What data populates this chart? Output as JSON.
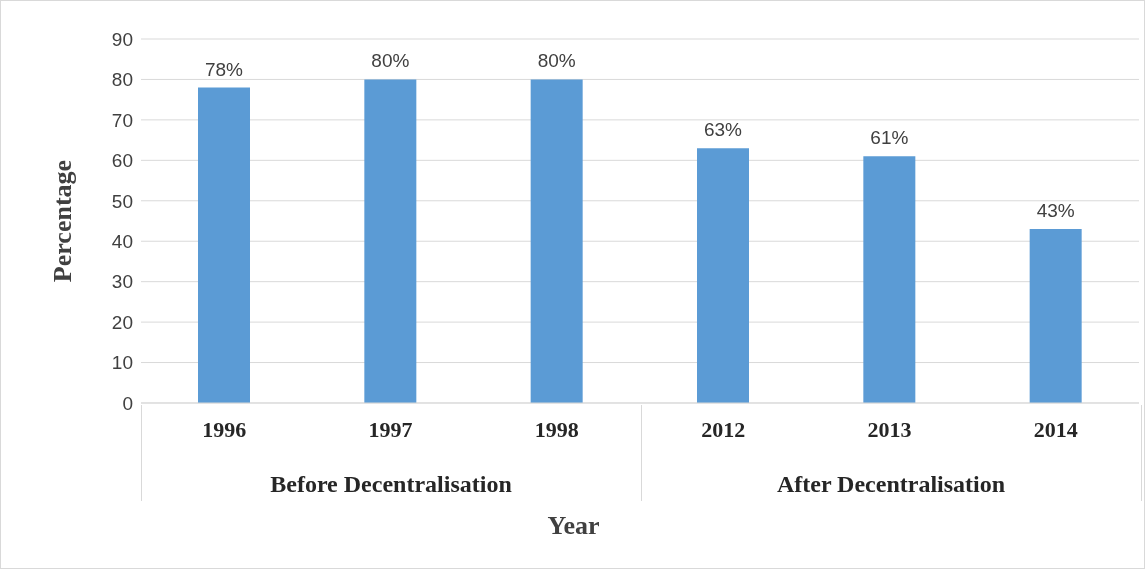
{
  "chart_data": {
    "type": "bar",
    "xlabel": "Year",
    "ylabel": "Percentage",
    "categories": [
      "1996",
      "1997",
      "1998",
      "2012",
      "2013",
      "2014"
    ],
    "values": [
      78,
      80,
      80,
      63,
      61,
      43
    ],
    "value_labels": [
      "78%",
      "80%",
      "80%",
      "63%",
      "61%",
      "43%"
    ],
    "color": "#5b9bd5",
    "ylim": [
      0,
      90
    ],
    "yticks": [
      0,
      10,
      20,
      30,
      40,
      50,
      60,
      70,
      80,
      90
    ],
    "grid": "y",
    "annotations": [
      "Before Decentralisation",
      "After Decentralisation"
    ]
  }
}
